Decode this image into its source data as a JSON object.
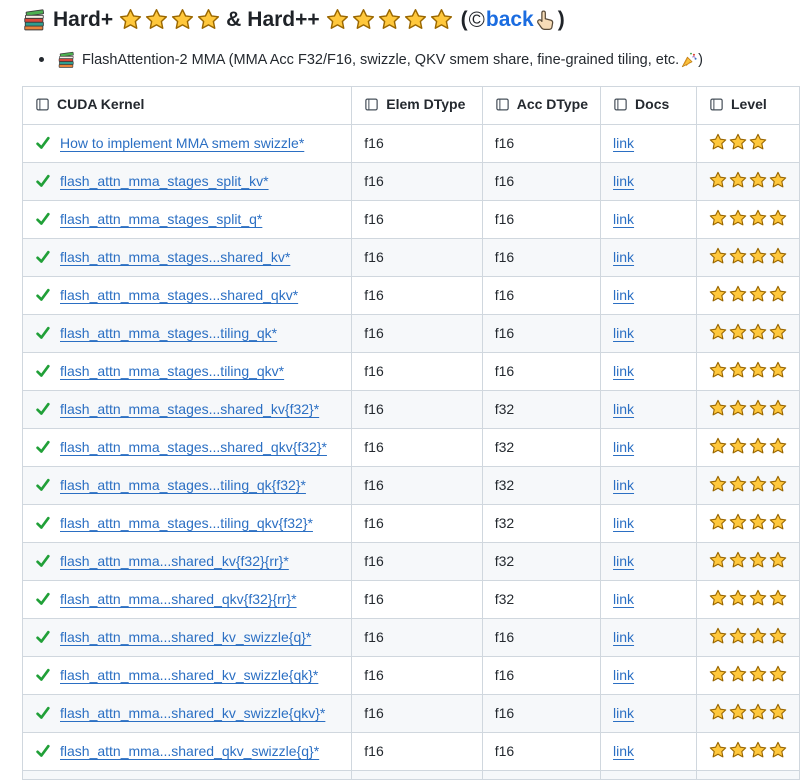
{
  "title": {
    "word1": "Hard+",
    "stars1": 4,
    "amp": "&",
    "word2": "Hard++",
    "stars2": 5,
    "open_paren": "(",
    "copyright_symbol": "©",
    "back_link": "back",
    "close_paren": ")"
  },
  "bullet": {
    "text": "FlashAttention-2 MMA (MMA Acc F32/F16, swizzle, QKV smem share, fine-grained tiling, etc.",
    "close_paren": ")"
  },
  "table": {
    "columns": [
      "CUDA Kernel",
      "Elem DType",
      "Acc DType",
      "Docs",
      "Level"
    ],
    "rows": [
      {
        "kernel": "How to implement MMA smem swizzle*",
        "elem_dtype": "f16",
        "acc_dtype": "f16",
        "docs": "link",
        "level": 3
      },
      {
        "kernel": "flash_attn_mma_stages_split_kv*",
        "elem_dtype": "f16",
        "acc_dtype": "f16",
        "docs": "link",
        "level": 4
      },
      {
        "kernel": "flash_attn_mma_stages_split_q*",
        "elem_dtype": "f16",
        "acc_dtype": "f16",
        "docs": "link",
        "level": 4
      },
      {
        "kernel": "flash_attn_mma_stages...shared_kv*",
        "elem_dtype": "f16",
        "acc_dtype": "f16",
        "docs": "link",
        "level": 4
      },
      {
        "kernel": "flash_attn_mma_stages...shared_qkv*",
        "elem_dtype": "f16",
        "acc_dtype": "f16",
        "docs": "link",
        "level": 4
      },
      {
        "kernel": "flash_attn_mma_stages...tiling_qk*",
        "elem_dtype": "f16",
        "acc_dtype": "f16",
        "docs": "link",
        "level": 4
      },
      {
        "kernel": "flash_attn_mma_stages...tiling_qkv*",
        "elem_dtype": "f16",
        "acc_dtype": "f16",
        "docs": "link",
        "level": 4
      },
      {
        "kernel": "flash_attn_mma_stages...shared_kv{f32}*",
        "elem_dtype": "f16",
        "acc_dtype": "f32",
        "docs": "link",
        "level": 4
      },
      {
        "kernel": "flash_attn_mma_stages...shared_qkv{f32}*",
        "elem_dtype": "f16",
        "acc_dtype": "f32",
        "docs": "link",
        "level": 4
      },
      {
        "kernel": "flash_attn_mma_stages...tiling_qk{f32}*",
        "elem_dtype": "f16",
        "acc_dtype": "f32",
        "docs": "link",
        "level": 4
      },
      {
        "kernel": "flash_attn_mma_stages...tiling_qkv{f32}*",
        "elem_dtype": "f16",
        "acc_dtype": "f32",
        "docs": "link",
        "level": 4
      },
      {
        "kernel": "flash_attn_mma...shared_kv{f32}{rr}*",
        "elem_dtype": "f16",
        "acc_dtype": "f32",
        "docs": "link",
        "level": 4
      },
      {
        "kernel": "flash_attn_mma...shared_qkv{f32}{rr}*",
        "elem_dtype": "f16",
        "acc_dtype": "f32",
        "docs": "link",
        "level": 4
      },
      {
        "kernel": "flash_attn_mma...shared_kv_swizzle{q}*",
        "elem_dtype": "f16",
        "acc_dtype": "f16",
        "docs": "link",
        "level": 4
      },
      {
        "kernel": "flash_attn_mma...shared_kv_swizzle{qk}*",
        "elem_dtype": "f16",
        "acc_dtype": "f16",
        "docs": "link",
        "level": 4
      },
      {
        "kernel": "flash_attn_mma...shared_kv_swizzle{qkv}*",
        "elem_dtype": "f16",
        "acc_dtype": "f16",
        "docs": "link",
        "level": 4
      },
      {
        "kernel": "flash_attn_mma...shared_qkv_swizzle{q}*",
        "elem_dtype": "f16",
        "acc_dtype": "f16",
        "docs": "link",
        "level": 4
      }
    ]
  },
  "icons": {
    "title_icon": "books-icon",
    "bullet_icon": "books-icon",
    "header_icon": "book-icon",
    "row_status_icon": "check-icon",
    "level_icon": "star-icon",
    "back_pointer_icon": "pointing-up-icon",
    "celebration_icon": "party-popper-icon"
  },
  "colors": {
    "link_blue": "#2b6fc3",
    "back_link_blue": "#1a6ce0",
    "check_green": "#21a038",
    "star_gold": "#FFC83D",
    "star_outline": "#9a6700",
    "border_gray": "#d0d7de",
    "alt_row_gray": "#f6f8fa",
    "text_dark": "#24292f"
  }
}
